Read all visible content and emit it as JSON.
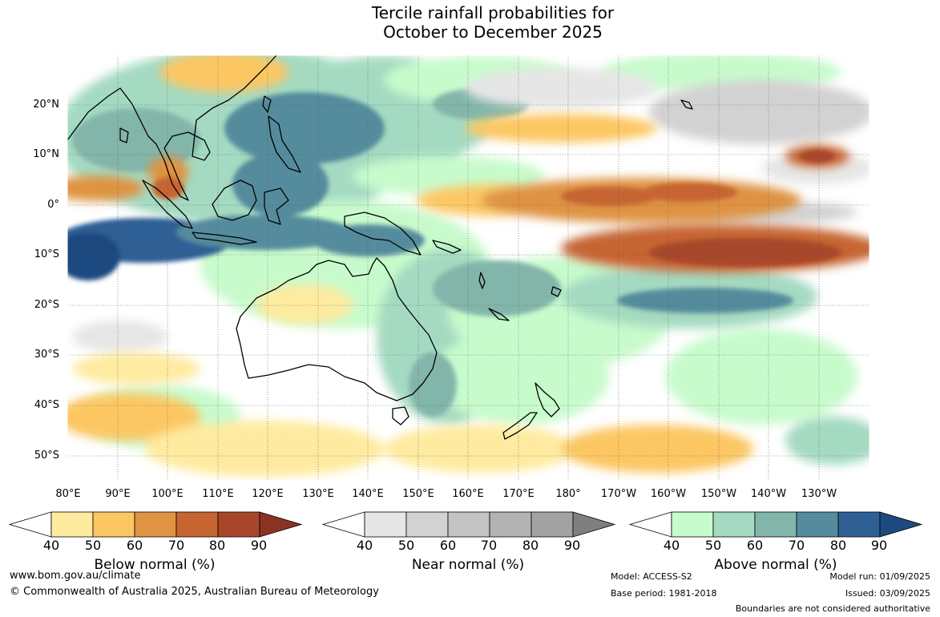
{
  "title": {
    "line1": "Tercile rainfall probabilities for",
    "line2": "October to December 2025"
  },
  "lat_labels": [
    "20°N",
    "10°N",
    "0°",
    "10°S",
    "20°S",
    "30°S",
    "40°S",
    "50°S"
  ],
  "lon_labels": [
    "80°E",
    "90°E",
    "100°E",
    "110°E",
    "120°E",
    "130°E",
    "140°E",
    "150°E",
    "160°E",
    "170°E",
    "180°",
    "170°W",
    "160°W",
    "150°W",
    "140°W",
    "130°W"
  ],
  "colorbars": [
    {
      "title": "Below normal (%)",
      "ticks": [
        "40",
        "50",
        "60",
        "70",
        "80",
        "90"
      ],
      "colors": [
        "#ffffff",
        "#feeba0",
        "#fcc763",
        "#df9343",
        "#c66531",
        "#a9462a",
        "#8b3323"
      ]
    },
    {
      "title": "Near normal (%)",
      "ticks": [
        "40",
        "50",
        "60",
        "70",
        "80",
        "90"
      ],
      "colors": [
        "#ffffff",
        "#e6e6e6",
        "#d2d2d2",
        "#c3c3c3",
        "#b3b3b3",
        "#a2a2a2",
        "#7f7f7f"
      ]
    },
    {
      "title": "Above normal (%)",
      "ticks": [
        "40",
        "50",
        "60",
        "70",
        "80",
        "90"
      ],
      "colors": [
        "#ffffff",
        "#c8fbcc",
        "#a4dac1",
        "#83b6aa",
        "#558c9d",
        "#2e5f95",
        "#1f4a7f"
      ]
    }
  ],
  "footer": {
    "website": "www.bom.gov.au/climate",
    "copyright": "© Commonwealth of Australia 2025, Australian Bureau of Meteorology",
    "model": "Model: ACCESS-S2",
    "base_period": "Base period: 1981-2018",
    "model_run": "Model run: 01/09/2025",
    "issued": "Issued: 03/09/2025",
    "boundaries": "Boundaries are not considered authoritative"
  }
}
